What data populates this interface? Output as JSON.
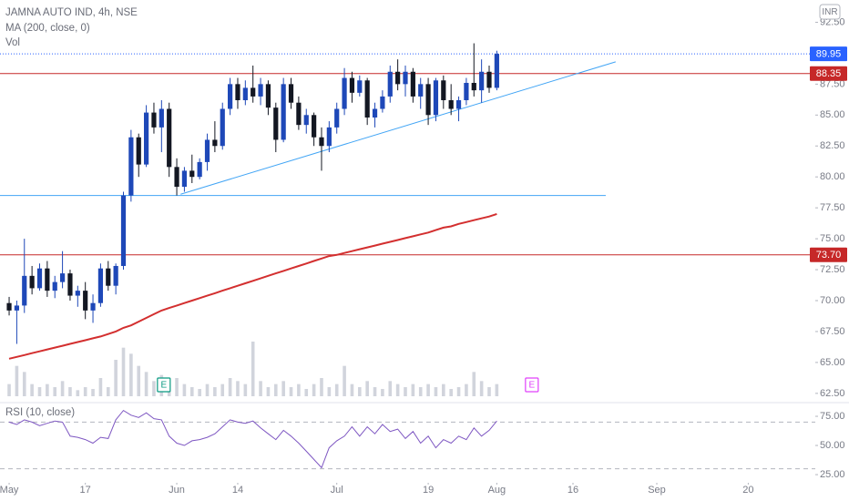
{
  "chart_data": {
    "type": "candlestick",
    "title": "JAMNA AUTO IND, 4h, NSE",
    "ma_label": "MA (200, close, 0)",
    "volume_label": "Vol",
    "rsi_label": "RSI (10, close)",
    "currency": "INR",
    "up_color": "#1e48b8",
    "down_color": "#131722",
    "xlim": [
      -1.2,
      105.8
    ],
    "xticks": [
      {
        "value": 0,
        "label": "May"
      },
      {
        "value": 10,
        "label": "17"
      },
      {
        "value": 22,
        "label": "Jun"
      },
      {
        "value": 30,
        "label": "14"
      },
      {
        "value": 43,
        "label": "Jul"
      },
      {
        "value": 55,
        "label": "19"
      },
      {
        "value": 64,
        "label": "Aug"
      },
      {
        "value": 74,
        "label": "16"
      },
      {
        "value": 85,
        "label": "Sep"
      },
      {
        "value": 97,
        "label": "20"
      }
    ],
    "ylim": [
      61.9,
      94.3
    ],
    "yticks": [
      {
        "value": 62.5,
        "label": "62.50"
      },
      {
        "value": 65,
        "label": "65.00"
      },
      {
        "value": 67.5,
        "label": "67.50"
      },
      {
        "value": 70,
        "label": "70.00"
      },
      {
        "value": 72.5,
        "label": "72.50"
      },
      {
        "value": 75,
        "label": "75.00"
      },
      {
        "value": 77.5,
        "label": "77.50"
      },
      {
        "value": 80,
        "label": "80.00"
      },
      {
        "value": 82.5,
        "label": "82.50"
      },
      {
        "value": 85,
        "label": "85.00"
      },
      {
        "value": 87.5,
        "label": "87.50"
      },
      {
        "value": 92.5,
        "label": "92.50"
      }
    ],
    "candles": {
      "open": [
        69.8,
        69.2,
        69.6,
        72.0,
        71.0,
        72.6,
        70.8,
        71.5,
        72.2,
        70.4,
        70.8,
        69.2,
        69.8,
        72.6,
        71.2,
        72.8,
        78.5,
        83.2,
        81.0,
        85.2,
        84.0,
        85.5,
        80.8,
        79.2,
        80.5,
        80.0,
        81.2,
        83.0,
        82.5,
        85.5,
        87.5,
        86.2,
        87.2,
        86.5,
        87.5,
        85.6,
        83.0,
        87.5,
        86.0,
        84.2,
        85.0,
        83.2,
        82.5,
        84.0,
        85.5,
        88.0,
        86.8,
        87.8,
        84.8,
        85.5,
        86.5,
        88.5,
        87.5,
        88.5,
        86.5,
        87.5,
        85.0,
        87.8,
        86.2,
        85.5,
        86.2,
        87.6,
        87.0,
        88.5,
        87.2
      ],
      "high": [
        70.3,
        70.0,
        75.0,
        72.8,
        73.0,
        73.2,
        72.0,
        74.0,
        72.5,
        71.2,
        71.5,
        70.5,
        73.0,
        73.2,
        73.0,
        78.8,
        83.8,
        83.5,
        85.8,
        86.0,
        86.2,
        86.0,
        81.5,
        80.8,
        81.8,
        81.5,
        83.5,
        84.5,
        86.0,
        88.0,
        88.0,
        87.8,
        89.0,
        88.0,
        87.8,
        86.0,
        88.0,
        88.0,
        86.5,
        85.5,
        85.2,
        84.0,
        84.5,
        86.0,
        88.8,
        88.5,
        88.2,
        88.0,
        86.0,
        87.0,
        89.0,
        89.5,
        89.0,
        88.8,
        88.0,
        88.0,
        88.0,
        88.2,
        87.5,
        86.5,
        88.0,
        90.8,
        89.5,
        89.0,
        90.2
      ],
      "low": [
        68.8,
        66.5,
        69.0,
        70.5,
        70.8,
        70.3,
        70.2,
        71.0,
        70.0,
        69.5,
        68.5,
        68.2,
        69.5,
        70.8,
        70.5,
        72.5,
        78.0,
        80.0,
        80.8,
        83.5,
        82.0,
        80.0,
        78.5,
        78.8,
        79.5,
        79.8,
        80.5,
        82.0,
        82.2,
        85.0,
        85.5,
        85.8,
        86.0,
        85.8,
        85.0,
        82.0,
        82.8,
        85.5,
        83.8,
        83.5,
        82.5,
        80.5,
        82.0,
        83.5,
        85.0,
        86.0,
        86.5,
        84.2,
        84.0,
        85.2,
        86.0,
        87.0,
        86.5,
        86.0,
        85.5,
        84.2,
        84.5,
        85.5,
        85.0,
        84.5,
        85.8,
        86.5,
        86.0,
        86.8,
        87.0
      ],
      "close": [
        69.2,
        69.6,
        72.0,
        71.0,
        72.6,
        70.8,
        71.5,
        72.2,
        70.4,
        70.8,
        69.2,
        69.8,
        72.6,
        71.2,
        72.8,
        78.5,
        83.2,
        81.0,
        85.2,
        84.0,
        85.5,
        80.8,
        79.2,
        80.5,
        80.0,
        81.2,
        83.0,
        82.5,
        85.5,
        87.5,
        86.2,
        87.2,
        86.5,
        87.5,
        85.6,
        83.0,
        87.5,
        86.0,
        84.2,
        85.0,
        83.2,
        82.5,
        84.0,
        85.5,
        88.0,
        86.8,
        87.8,
        84.8,
        85.5,
        86.5,
        88.5,
        87.5,
        88.5,
        86.5,
        87.5,
        85.0,
        87.8,
        86.2,
        85.5,
        86.2,
        87.6,
        87.0,
        88.5,
        87.2,
        89.95
      ]
    },
    "ma": {
      "color": "#d32f2f",
      "values": [
        65.3,
        65.45,
        65.6,
        65.75,
        65.9,
        66.05,
        66.2,
        66.35,
        66.5,
        66.65,
        66.8,
        66.95,
        67.1,
        67.3,
        67.5,
        67.8,
        68.0,
        68.3,
        68.6,
        68.9,
        69.2,
        69.4,
        69.6,
        69.8,
        70.0,
        70.2,
        70.4,
        70.6,
        70.8,
        71.0,
        71.2,
        71.4,
        71.6,
        71.8,
        72.0,
        72.2,
        72.4,
        72.6,
        72.8,
        73.0,
        73.2,
        73.4,
        73.6,
        73.7,
        73.85,
        74.0,
        74.15,
        74.3,
        74.45,
        74.6,
        74.75,
        74.9,
        75.05,
        75.2,
        75.35,
        75.5,
        75.7,
        75.9,
        76.0,
        76.2,
        76.35,
        76.5,
        76.65,
        76.8,
        77.0
      ]
    },
    "volume": {
      "color": "#d1d4dc",
      "ylim": [
        0,
        12
      ],
      "values": [
        2,
        5,
        4,
        2,
        1.5,
        2,
        1.5,
        2.5,
        1.5,
        1,
        1.5,
        1.2,
        3,
        1.5,
        6,
        8,
        7,
        5,
        4,
        2.5,
        3.5,
        2,
        3,
        2,
        1.5,
        1.2,
        2,
        1.5,
        2,
        3,
        2.5,
        2,
        9,
        2.5,
        1.5,
        2,
        2.5,
        1.5,
        2,
        1.2,
        2,
        3,
        1.5,
        2,
        5,
        2,
        1.5,
        2.5,
        1.5,
        1.2,
        2.5,
        2,
        1.5,
        2,
        1.5,
        2,
        1.5,
        2,
        1.2,
        1.5,
        2,
        4,
        2.5,
        1.5,
        2
      ]
    },
    "rsi": {
      "color": "#7e57c2",
      "ylim": [
        18,
        84.4
      ],
      "bands": [
        30,
        70
      ],
      "yticks": [
        {
          "value": 75,
          "label": "75.00"
        },
        {
          "value": 50,
          "label": "50.00"
        },
        {
          "value": 25,
          "label": "25.00"
        }
      ],
      "values": [
        70,
        68,
        72,
        70,
        67,
        69,
        71,
        70,
        58,
        57,
        55,
        52,
        57,
        56,
        72,
        80,
        76,
        74,
        78,
        73,
        72,
        58,
        52,
        50,
        54,
        55,
        57,
        60,
        66,
        72,
        70,
        69,
        71,
        65,
        60,
        55,
        63,
        58,
        52,
        45,
        38,
        31,
        48,
        54,
        58,
        66,
        58,
        66,
        60,
        68,
        62,
        64,
        56,
        62,
        52,
        58,
        48,
        55,
        52,
        58,
        55,
        65,
        58,
        63,
        71
      ]
    },
    "current_price": {
      "value": 89.95,
      "color": "#2962ff"
    },
    "price_lines": [
      {
        "value": 88.35,
        "color": "#c62828"
      },
      {
        "value": 73.7,
        "label": "73.70",
        "color": "#c62828"
      }
    ],
    "trendlines": [
      {
        "points": [
          [
            22.5,
            78.6
          ],
          [
            79.6,
            89.3
          ]
        ],
        "color": "#42a5f5"
      },
      {
        "points": [
          [
            -1.2,
            78.5
          ],
          [
            78.3,
            78.5
          ]
        ],
        "color": "#42a5f5"
      }
    ],
    "events": [
      {
        "x": 20.3,
        "label": "E",
        "color": "#089981"
      },
      {
        "x": 68.6,
        "label": "E",
        "color": "#e040fb"
      }
    ]
  }
}
